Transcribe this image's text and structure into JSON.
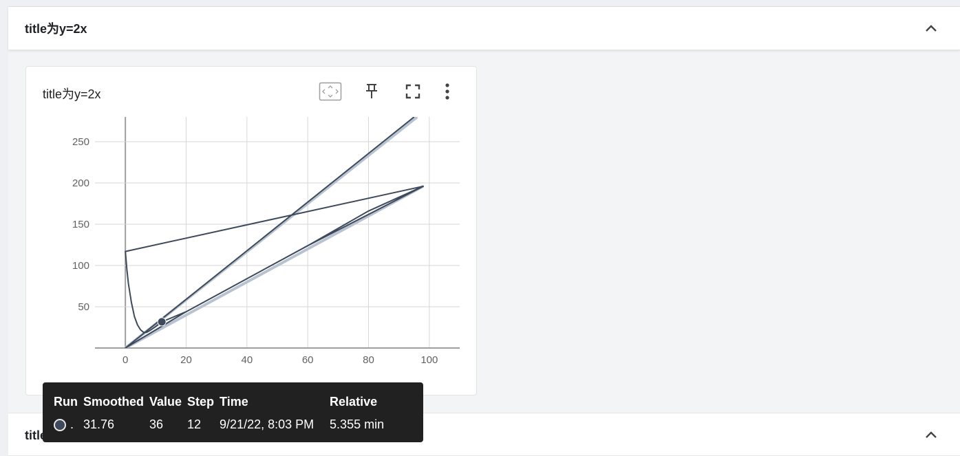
{
  "group1": {
    "title": "title为y=2x"
  },
  "group2": {
    "title": "title为y=x"
  },
  "card": {
    "title": "title为y=2x",
    "tools": {
      "fit": "fit-domain-icon",
      "pin": "pin-icon",
      "fullscreen": "fullscreen-icon",
      "more": "more-vert-icon"
    }
  },
  "chart_data": {
    "type": "line",
    "title": "",
    "xlabel": "",
    "ylabel": "",
    "x_ticks": [
      "0",
      "20",
      "40",
      "60",
      "80",
      "100"
    ],
    "y_ticks": [
      "0",
      "50",
      "100",
      "150",
      "200",
      "250"
    ],
    "xlim": [
      -10,
      110
    ],
    "ylim": [
      0,
      280
    ],
    "grid": true,
    "series": [
      {
        "role": "smoothed",
        "color": "#3d4a5c",
        "points": [
          [
            0,
            117
          ],
          [
            0.5,
            95
          ],
          [
            1,
            78
          ],
          [
            2,
            55
          ],
          [
            3,
            38
          ],
          [
            4,
            28
          ],
          [
            5,
            22
          ],
          [
            6,
            19
          ],
          [
            7,
            19
          ],
          [
            8,
            21
          ],
          [
            10,
            26
          ],
          [
            12,
            31.76
          ],
          [
            20,
            44
          ],
          [
            40,
            84
          ],
          [
            60,
            124
          ],
          [
            80,
            166
          ],
          [
            98,
            196
          ],
          [
            0,
            117
          ],
          [
            98,
            196
          ],
          [
            60,
            124
          ],
          [
            40,
            84
          ],
          [
            20,
            44
          ],
          [
            10,
            22
          ],
          [
            0,
            0
          ],
          [
            95,
            280
          ]
        ]
      },
      {
        "role": "raw",
        "color": "#b9c2d0",
        "points": [
          [
            0,
            0
          ],
          [
            96,
            280
          ]
        ]
      },
      {
        "role": "raw",
        "color": "#b9c2d0",
        "points": [
          [
            0,
            0
          ],
          [
            98,
            196
          ]
        ]
      }
    ],
    "highlight": {
      "x": 12,
      "y": 31.76
    }
  },
  "tooltip": {
    "headers": [
      "Run",
      "Smoothed",
      "Value",
      "Step",
      "Time",
      "Relative"
    ],
    "row": {
      "run": ".",
      "smoothed": "31.76",
      "value": "36",
      "step": "12",
      "time": "9/21/22, 8:03 PM",
      "relative": "5.355 min"
    },
    "dot_color": "#3d4a5c"
  }
}
